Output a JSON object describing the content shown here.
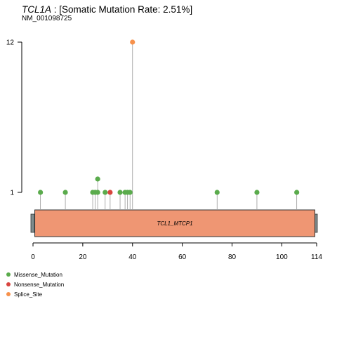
{
  "title": {
    "gene": "TCL1A",
    "rest": " : [Somatic Mutation Rate: 2.51%]"
  },
  "subtitle": "NM_001098725",
  "chart_data": {
    "type": "lollipop",
    "protein_length": 114,
    "x_ticks": [
      0,
      20,
      40,
      60,
      80,
      100,
      114
    ],
    "y_ticks": [
      1,
      12
    ],
    "xlim": [
      0,
      114
    ],
    "domain": {
      "label": "TCL1_MTCP1",
      "start": 1,
      "end": 113,
      "color": "#ef9673"
    },
    "mutation_types": [
      {
        "name": "Missense_Mutation",
        "color": "#5aab4c"
      },
      {
        "name": "Nonsense_Mutation",
        "color": "#d8443e"
      },
      {
        "name": "Splice_Site",
        "color": "#f7914b"
      }
    ],
    "mutations": [
      {
        "pos": 3,
        "count": 1,
        "type": "Missense_Mutation"
      },
      {
        "pos": 13,
        "count": 1,
        "type": "Missense_Mutation"
      },
      {
        "pos": 24,
        "count": 1,
        "type": "Missense_Mutation"
      },
      {
        "pos": 25,
        "count": 1,
        "type": "Missense_Mutation"
      },
      {
        "pos": 26,
        "count": 2,
        "type": "Missense_Mutation"
      },
      {
        "pos": 29,
        "count": 1,
        "type": "Missense_Mutation"
      },
      {
        "pos": 31,
        "count": 1,
        "type": "Nonsense_Mutation"
      },
      {
        "pos": 35,
        "count": 1,
        "type": "Missense_Mutation"
      },
      {
        "pos": 37,
        "count": 1,
        "type": "Missense_Mutation"
      },
      {
        "pos": 38,
        "count": 1,
        "type": "Missense_Mutation"
      },
      {
        "pos": 39,
        "count": 1,
        "type": "Missense_Mutation"
      },
      {
        "pos": 40,
        "count": 12,
        "type": "Splice_Site"
      },
      {
        "pos": 74,
        "count": 1,
        "type": "Missense_Mutation"
      },
      {
        "pos": 90,
        "count": 1,
        "type": "Missense_Mutation"
      },
      {
        "pos": 106,
        "count": 1,
        "type": "Missense_Mutation"
      }
    ]
  }
}
